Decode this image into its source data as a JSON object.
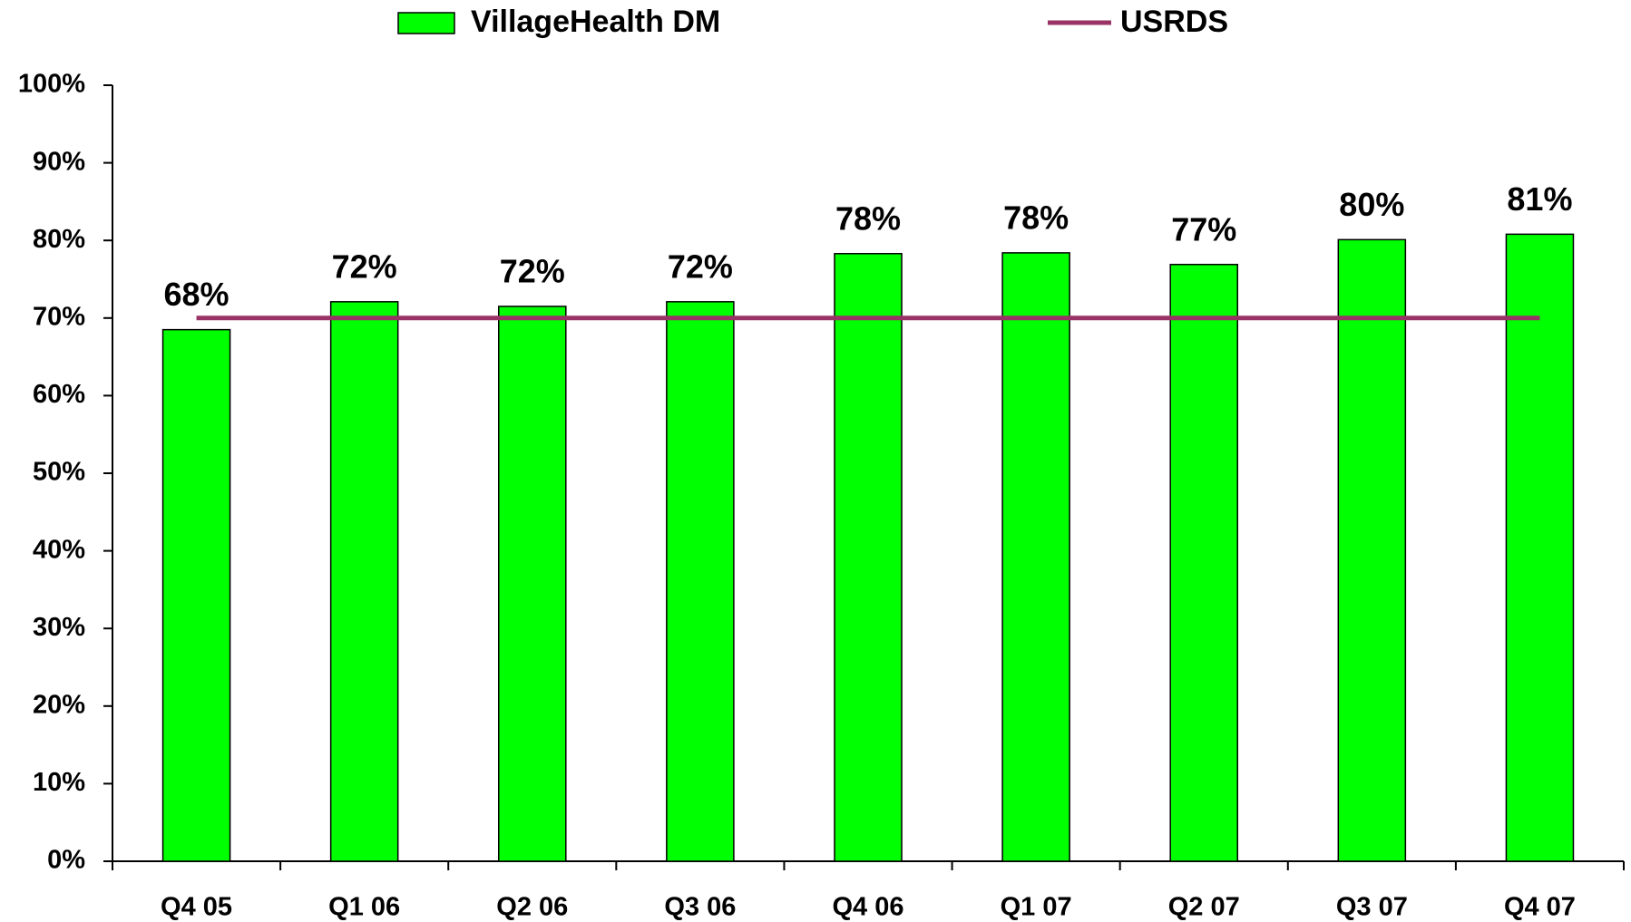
{
  "chart_data": {
    "type": "bar",
    "categories": [
      "Q4 05",
      "Q1 06",
      "Q2 06",
      "Q3 06",
      "Q4 06",
      "Q1 07",
      "Q2 07",
      "Q3 07",
      "Q4 07"
    ],
    "series": [
      {
        "name": "VillageHealth DM",
        "type": "bar",
        "color": "#00ff00",
        "values": [
          68.5,
          72.1,
          71.5,
          72.1,
          78.3,
          78.4,
          76.9,
          80.1,
          80.8
        ],
        "value_labels": [
          "68%",
          "72%",
          "72%",
          "72%",
          "78%",
          "78%",
          "77%",
          "80%",
          "81%"
        ]
      },
      {
        "name": "USRDS",
        "type": "line",
        "color": "#993366",
        "values": [
          70,
          70,
          70,
          70,
          70,
          70,
          70,
          70,
          70
        ]
      }
    ],
    "ylim": [
      0,
      100
    ],
    "yticks": [
      {
        "value": 0,
        "label": "0%"
      },
      {
        "value": 10,
        "label": "10%"
      },
      {
        "value": 20,
        "label": "20%"
      },
      {
        "value": 30,
        "label": "30%"
      },
      {
        "value": 40,
        "label": "40%"
      },
      {
        "value": 50,
        "label": "50%"
      },
      {
        "value": 60,
        "label": "60%"
      },
      {
        "value": 70,
        "label": "70%"
      },
      {
        "value": 80,
        "label": "80%"
      },
      {
        "value": 90,
        "label": "90%"
      },
      {
        "value": 100,
        "label": "100%"
      }
    ],
    "legend": "top"
  }
}
